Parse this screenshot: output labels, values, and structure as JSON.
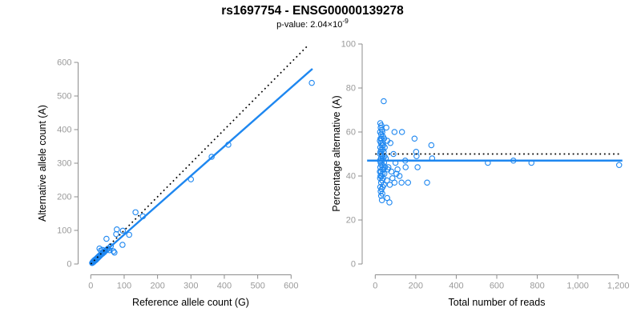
{
  "title": "rs1697754 - ENSG00000139278",
  "subtitle": {
    "text": "p-value: 2.04×10",
    "exponent": "-9"
  },
  "colors": {
    "accent": "#1E87F0",
    "dotted_line": "#000000",
    "axis": "#8c8c8c",
    "tick_label": "#9a9a9a",
    "axis_title": "#404040",
    "title": "#1a1a1a",
    "subtitle": "#9e9e9e"
  },
  "chart_data": [
    {
      "type": "scatter",
      "panel": "left",
      "xlabel": "Reference allele count (G)",
      "ylabel": "Alternative allele count (A)",
      "xlim": [
        0,
        600
      ],
      "ylim": [
        0,
        600
      ],
      "grid": false,
      "xticks": [
        0,
        100,
        200,
        300,
        400,
        500,
        600
      ],
      "xtick_labels": [
        "0",
        "100",
        "200",
        "300",
        "400",
        "500",
        "600"
      ],
      "yticks": [
        0,
        100,
        200,
        300,
        400,
        500,
        600
      ],
      "ytick_labels": [
        "0",
        "100",
        "200",
        "300",
        "400",
        "500",
        "600"
      ],
      "lines": [
        {
          "name": "regression-line",
          "style": "solid",
          "from": [
            0,
            0
          ],
          "to": [
            664,
            581
          ]
        },
        {
          "name": "identity-line",
          "style": "dotted",
          "from": [
            0,
            0
          ],
          "to": [
            648,
            648
          ]
        }
      ],
      "points": [
        [
          4,
          3
        ],
        [
          5,
          4
        ],
        [
          6,
          5
        ],
        [
          6,
          6
        ],
        [
          7,
          5
        ],
        [
          7,
          7
        ],
        [
          8,
          6
        ],
        [
          8,
          8
        ],
        [
          9,
          7
        ],
        [
          9,
          9
        ],
        [
          10,
          8
        ],
        [
          10,
          10
        ],
        [
          11,
          9
        ],
        [
          11,
          11
        ],
        [
          12,
          10
        ],
        [
          12,
          12
        ],
        [
          13,
          11
        ],
        [
          13,
          13
        ],
        [
          14,
          11
        ],
        [
          14,
          13
        ],
        [
          15,
          12
        ],
        [
          15,
          14
        ],
        [
          16,
          13
        ],
        [
          16,
          15
        ],
        [
          17,
          14
        ],
        [
          17,
          16
        ],
        [
          18,
          15
        ],
        [
          18,
          17
        ],
        [
          19,
          16
        ],
        [
          19,
          18
        ],
        [
          20,
          17
        ],
        [
          20,
          19
        ],
        [
          21,
          18
        ],
        [
          22,
          19
        ],
        [
          22,
          21
        ],
        [
          23,
          20
        ],
        [
          24,
          21
        ],
        [
          24,
          23
        ],
        [
          25,
          22
        ],
        [
          26,
          23
        ],
        [
          26,
          25
        ],
        [
          27,
          24
        ],
        [
          28,
          25
        ],
        [
          29,
          26
        ],
        [
          30,
          27
        ],
        [
          31,
          28
        ],
        [
          32,
          29
        ],
        [
          33,
          30
        ],
        [
          34,
          30
        ],
        [
          35,
          31
        ],
        [
          36,
          32
        ],
        [
          38,
          34
        ],
        [
          40,
          35
        ],
        [
          26,
          46
        ],
        [
          30,
          40
        ],
        [
          35,
          42
        ],
        [
          42,
          38
        ],
        [
          45,
          40
        ],
        [
          48,
          43
        ],
        [
          52,
          46
        ],
        [
          56,
          41
        ],
        [
          60,
          53
        ],
        [
          47,
          75
        ],
        [
          68,
          38
        ],
        [
          71,
          34
        ],
        [
          76,
          89
        ],
        [
          78,
          103
        ],
        [
          95,
          57
        ],
        [
          96,
          99
        ],
        [
          115,
          87
        ],
        [
          134,
          154
        ],
        [
          156,
          142
        ],
        [
          300,
          252
        ],
        [
          362,
          319
        ],
        [
          412,
          355
        ],
        [
          662,
          539
        ]
      ]
    },
    {
      "type": "scatter",
      "panel": "right",
      "xlabel": "Total number of reads",
      "ylabel": "Percentage alternative (A)",
      "xlim": [
        0,
        1200
      ],
      "ylim": [
        0,
        100
      ],
      "grid": false,
      "xticks": [
        0,
        200,
        400,
        600,
        800,
        1000,
        1200
      ],
      "xtick_labels": [
        "0",
        "200",
        "400",
        "600",
        "800",
        "1,000",
        "1,200"
      ],
      "yticks": [
        0,
        20,
        40,
        60,
        80,
        100
      ],
      "ytick_labels": [
        "0",
        "20",
        "40",
        "60",
        "80",
        "100"
      ],
      "lines": [
        {
          "name": "mean-percentage-line",
          "style": "solid",
          "from": [
            -40,
            47
          ],
          "to": [
            1220,
            47
          ]
        },
        {
          "name": "fifty-percent-line",
          "style": "dotted",
          "from": [
            0,
            50
          ],
          "to": [
            1215,
            50
          ]
        }
      ],
      "points": [
        [
          42,
          74
        ],
        [
          25,
          64
        ],
        [
          30,
          63
        ],
        [
          27,
          62
        ],
        [
          33,
          61
        ],
        [
          24,
          60
        ],
        [
          35,
          60
        ],
        [
          29,
          59
        ],
        [
          38,
          58
        ],
        [
          26,
          57
        ],
        [
          31,
          57
        ],
        [
          44,
          57
        ],
        [
          23,
          56
        ],
        [
          28,
          55
        ],
        [
          36,
          55
        ],
        [
          25,
          53
        ],
        [
          33,
          54
        ],
        [
          40,
          54
        ],
        [
          47,
          53
        ],
        [
          30,
          52
        ],
        [
          37,
          52
        ],
        [
          26,
          51
        ],
        [
          42,
          51
        ],
        [
          24,
          50
        ],
        [
          31,
          50
        ],
        [
          35,
          49
        ],
        [
          46,
          49
        ],
        [
          28,
          48
        ],
        [
          39,
          48
        ],
        [
          23,
          47
        ],
        [
          33,
          47
        ],
        [
          27,
          46
        ],
        [
          44,
          46
        ],
        [
          30,
          45
        ],
        [
          37,
          45
        ],
        [
          25,
          44
        ],
        [
          48,
          44
        ],
        [
          34,
          43
        ],
        [
          41,
          43
        ],
        [
          23,
          42
        ],
        [
          28,
          42
        ],
        [
          36,
          41
        ],
        [
          45,
          41
        ],
        [
          26,
          40
        ],
        [
          31,
          40
        ],
        [
          24,
          39
        ],
        [
          39,
          39
        ],
        [
          34,
          38
        ],
        [
          29,
          37
        ],
        [
          43,
          36
        ],
        [
          25,
          35
        ],
        [
          37,
          35
        ],
        [
          31,
          34
        ],
        [
          27,
          33
        ],
        [
          35,
          32
        ],
        [
          29,
          31
        ],
        [
          33,
          29
        ],
        [
          59,
          30
        ],
        [
          70,
          28
        ],
        [
          55,
          62
        ],
        [
          60,
          56
        ],
        [
          52,
          48
        ],
        [
          58,
          38
        ],
        [
          62,
          43
        ],
        [
          65,
          44
        ],
        [
          72,
          36
        ],
        [
          75,
          55
        ],
        [
          80,
          42
        ],
        [
          85,
          39
        ],
        [
          90,
          50
        ],
        [
          95,
          60
        ],
        [
          95,
          37
        ],
        [
          100,
          46
        ],
        [
          105,
          41
        ],
        [
          110,
          43
        ],
        [
          120,
          40
        ],
        [
          130,
          37
        ],
        [
          132,
          60
        ],
        [
          148,
          47
        ],
        [
          150,
          44
        ],
        [
          162,
          37
        ],
        [
          194,
          57
        ],
        [
          202,
          51
        ],
        [
          204,
          49
        ],
        [
          209,
          44
        ],
        [
          256,
          37
        ],
        [
          277,
          54
        ],
        [
          281,
          48
        ],
        [
          556,
          46
        ],
        [
          682,
          47
        ],
        [
          771,
          46
        ],
        [
          1204,
          45
        ]
      ]
    }
  ]
}
